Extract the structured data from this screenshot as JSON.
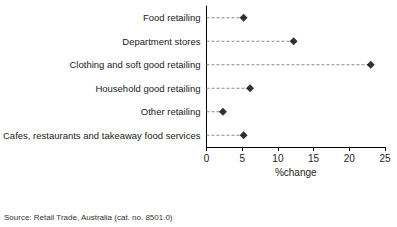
{
  "chart_data": {
    "type": "scatter",
    "orientation": "horizontal",
    "categories": [
      "Food retailing",
      "Department stores",
      "Clothing and soft good retailing",
      "Household good retailing",
      "Other retailing",
      "Cafes, restaurants and takeaway food services"
    ],
    "values": [
      5.2,
      12.2,
      23.0,
      6.1,
      2.3,
      5.2
    ],
    "color": "#000000",
    "marker": "diamond",
    "line_style": "dashed",
    "xlabel": "%change",
    "xlim": [
      0,
      25
    ],
    "xticks": [
      0,
      5,
      10,
      15,
      20,
      25
    ],
    "grid": false,
    "source": "Source: Retail Trade, Australia (cat. no. 8501.0)"
  }
}
